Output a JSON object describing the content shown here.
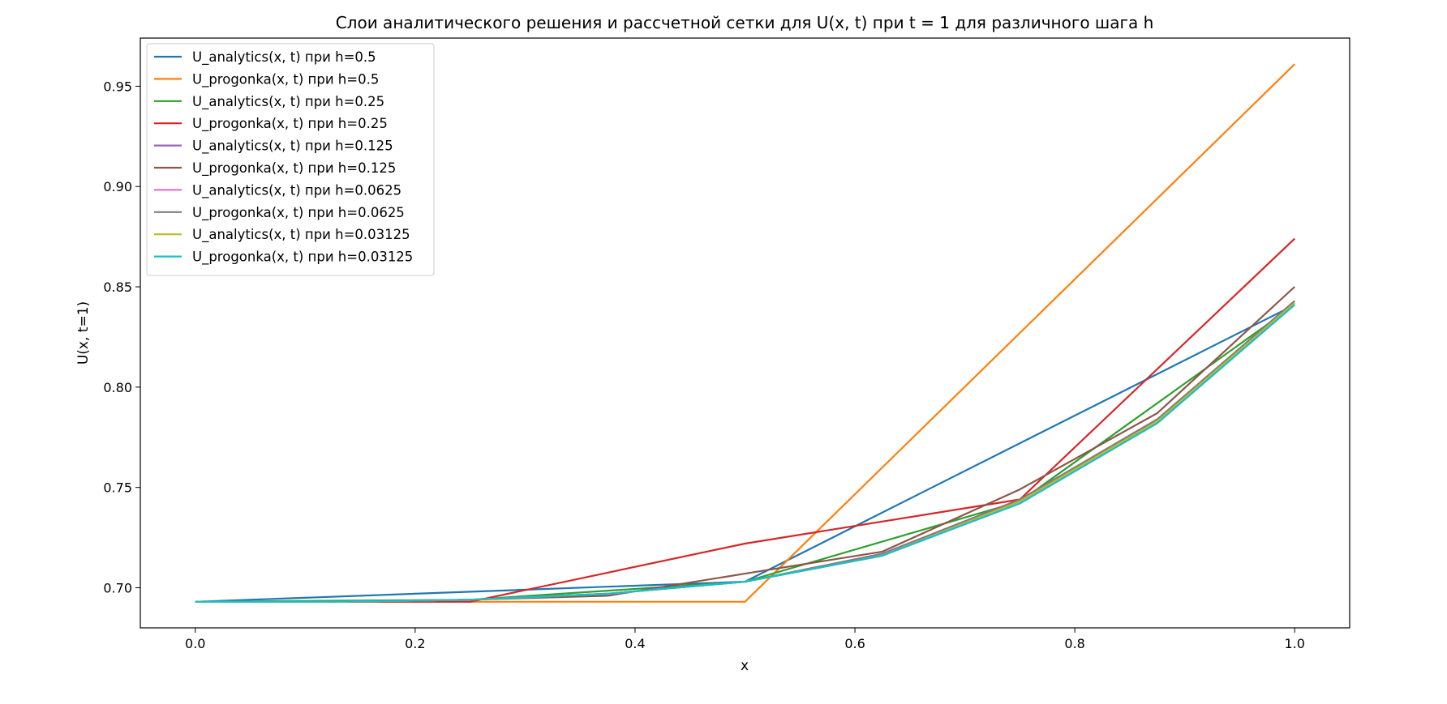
{
  "chart_data": {
    "type": "line",
    "title": "Слои аналитического решения и рассчетной сетки для U(x, t) при t = 1 для различного шага h",
    "xlabel": "x",
    "ylabel": "U(x, t=1)",
    "xlim": [
      -0.05,
      1.05
    ],
    "ylim": [
      0.68,
      0.974
    ],
    "x_ticks": [
      0.0,
      0.2,
      0.4,
      0.6,
      0.8,
      1.0
    ],
    "x_tick_labels": [
      "0.0",
      "0.2",
      "0.4",
      "0.6",
      "0.8",
      "1.0"
    ],
    "y_ticks": [
      0.7,
      0.75,
      0.8,
      0.85,
      0.9,
      0.95
    ],
    "y_tick_labels": [
      "0.70",
      "0.75",
      "0.80",
      "0.85",
      "0.90",
      "0.95"
    ],
    "grid": false,
    "legend_position": "upper-left",
    "series": [
      {
        "name": "U_analytics(x, t) при h=0.5",
        "color": "#1f77b4",
        "x": [
          0,
          0.5,
          1.0
        ],
        "y": [
          0.693,
          0.703,
          0.841
        ]
      },
      {
        "name": "U_progonka(x, t) при h=0.5",
        "color": "#ff7f0e",
        "x": [
          0,
          0.5,
          1.0
        ],
        "y": [
          0.693,
          0.693,
          0.961
        ]
      },
      {
        "name": "U_analytics(x, t) при h=0.25",
        "color": "#2ca02c",
        "x": [
          0,
          0.25,
          0.5,
          0.75,
          1.0
        ],
        "y": [
          0.693,
          0.694,
          0.703,
          0.743,
          0.841
        ]
      },
      {
        "name": "U_progonka(x, t) при h=0.25",
        "color": "#d62728",
        "x": [
          0,
          0.25,
          0.5,
          0.75,
          1.0
        ],
        "y": [
          0.693,
          0.693,
          0.722,
          0.744,
          0.874
        ]
      },
      {
        "name": "U_analytics(x, t) при h=0.125",
        "color": "#9467bd",
        "x": [
          0,
          0.125,
          0.25,
          0.375,
          0.5,
          0.625,
          0.75,
          0.875,
          1.0
        ],
        "y": [
          0.693,
          0.693,
          0.694,
          0.697,
          0.703,
          0.716,
          0.743,
          0.783,
          0.843
        ]
      },
      {
        "name": "U_progonka(x, t) при h=0.125",
        "color": "#8c564b",
        "x": [
          0,
          0.125,
          0.25,
          0.375,
          0.5,
          0.625,
          0.75,
          0.875,
          1.0
        ],
        "y": [
          0.693,
          0.693,
          0.694,
          0.696,
          0.707,
          0.718,
          0.749,
          0.787,
          0.85
        ]
      },
      {
        "name": "U_analytics(x, t) при h=0.0625",
        "color": "#e377c2",
        "x": [
          0,
          0.125,
          0.25,
          0.375,
          0.5,
          0.625,
          0.75,
          0.875,
          1.0
        ],
        "y": [
          0.693,
          0.693,
          0.694,
          0.697,
          0.703,
          0.716,
          0.743,
          0.783,
          0.842
        ]
      },
      {
        "name": "U_progonka(x, t) при h=0.0625",
        "color": "#7f7f7f",
        "x": [
          0,
          0.125,
          0.25,
          0.375,
          0.5,
          0.625,
          0.75,
          0.875,
          1.0
        ],
        "y": [
          0.693,
          0.693,
          0.694,
          0.697,
          0.703,
          0.717,
          0.744,
          0.784,
          0.843
        ]
      },
      {
        "name": "U_analytics(x, t) при h=0.03125",
        "color": "#bcbd22",
        "x": [
          0,
          0.125,
          0.25,
          0.375,
          0.5,
          0.625,
          0.75,
          0.875,
          1.0
        ],
        "y": [
          0.693,
          0.693,
          0.694,
          0.697,
          0.703,
          0.716,
          0.743,
          0.783,
          0.842
        ]
      },
      {
        "name": "U_progonka(x, t) при h=0.03125",
        "color": "#17becf",
        "x": [
          0,
          0.125,
          0.25,
          0.375,
          0.5,
          0.625,
          0.75,
          0.875,
          1.0
        ],
        "y": [
          0.693,
          0.693,
          0.694,
          0.697,
          0.703,
          0.716,
          0.742,
          0.782,
          0.841
        ]
      }
    ]
  }
}
